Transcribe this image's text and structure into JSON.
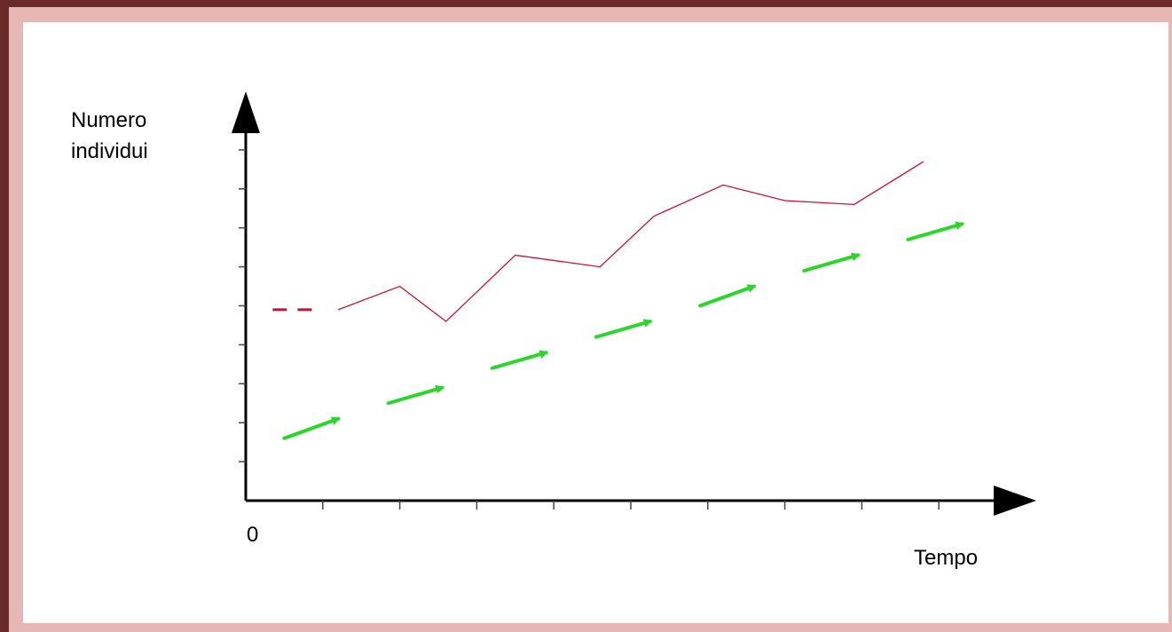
{
  "colors": {
    "frame_dark": "#6b2a2a",
    "frame_light": "#e7b7b6",
    "population_line": "#c8102e",
    "trend_arrows": "#2bd62b",
    "axes": "#000000"
  },
  "chart_data": {
    "type": "line",
    "title": "",
    "ylabel_lines": [
      "Numero",
      "individui"
    ],
    "xlabel": "Tempo",
    "origin_label": "0",
    "xlim": [
      0,
      10
    ],
    "ylim": [
      0,
      10
    ],
    "x_ticks": [
      1,
      2,
      3,
      4,
      5,
      6,
      7,
      8,
      9
    ],
    "y_ticks": [
      1,
      2,
      3,
      4,
      5,
      6,
      7,
      8,
      9
    ],
    "grid": false,
    "legend": "none",
    "series": [
      {
        "style": "dashed",
        "color": "#c8102e",
        "x": [
          0.35,
          0.9
        ],
        "y": [
          4.9,
          4.9
        ]
      },
      {
        "style": "solid",
        "color": "#c8102e",
        "x": [
          1.2,
          2.0,
          2.6,
          3.5,
          4.6,
          5.3,
          6.2,
          7.0,
          7.9,
          8.8
        ],
        "y": [
          4.9,
          5.5,
          4.6,
          6.3,
          6.0,
          7.3,
          8.1,
          7.7,
          7.6,
          8.7
        ]
      }
    ],
    "trend_arrows": [
      {
        "x": [
          0.5,
          1.2
        ],
        "y": [
          1.6,
          2.1
        ]
      },
      {
        "x": [
          1.85,
          2.55
        ],
        "y": [
          2.5,
          2.9
        ]
      },
      {
        "x": [
          3.2,
          3.9
        ],
        "y": [
          3.4,
          3.8
        ]
      },
      {
        "x": [
          4.55,
          5.25
        ],
        "y": [
          4.2,
          4.6
        ]
      },
      {
        "x": [
          5.9,
          6.6
        ],
        "y": [
          5.0,
          5.5
        ]
      },
      {
        "x": [
          7.25,
          7.95
        ],
        "y": [
          5.9,
          6.3
        ]
      },
      {
        "x": [
          8.6,
          9.3
        ],
        "y": [
          6.7,
          7.1
        ]
      }
    ]
  }
}
